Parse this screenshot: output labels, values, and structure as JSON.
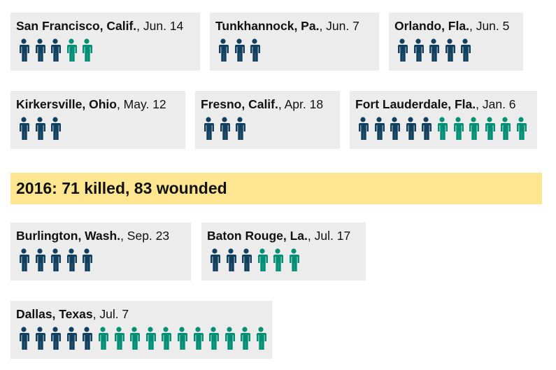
{
  "colors": {
    "killed": "#11405e",
    "wounded": "#008f74"
  },
  "banner": {
    "text": "2016: 71 killed, 83 wounded"
  },
  "chart_data": {
    "type": "table",
    "title": "",
    "incidents": [
      {
        "place": "San Francisco, Calif.",
        "date": ", Jun. 14",
        "killed": 3,
        "wounded": 2
      },
      {
        "place": "Tunkhannock, Pa.",
        "date": ", Jun. 7",
        "killed": 3,
        "wounded": 0
      },
      {
        "place": "Orlando, Fla.",
        "date": ", Jun. 5",
        "killed": 5,
        "wounded": 0
      },
      {
        "place": "Kirkersville, Ohio",
        "date": ", May. 12",
        "killed": 3,
        "wounded": 0
      },
      {
        "place": "Fresno, Calif.",
        "date": ", Apr. 18",
        "killed": 3,
        "wounded": 0
      },
      {
        "place": "Fort Lauderdale, Fla.",
        "date": ", Jan. 6",
        "killed": 5,
        "wounded": 6
      },
      {
        "place": "Burlington, Wash.",
        "date": ", Sep. 23",
        "killed": 5,
        "wounded": 0
      },
      {
        "place": "Baton Rouge, La.",
        "date": ", Jul. 17",
        "killed": 3,
        "wounded": 3
      },
      {
        "place": "Dallas, Texas",
        "date": ", Jul. 7",
        "killed": 5,
        "wounded": 11
      }
    ]
  }
}
